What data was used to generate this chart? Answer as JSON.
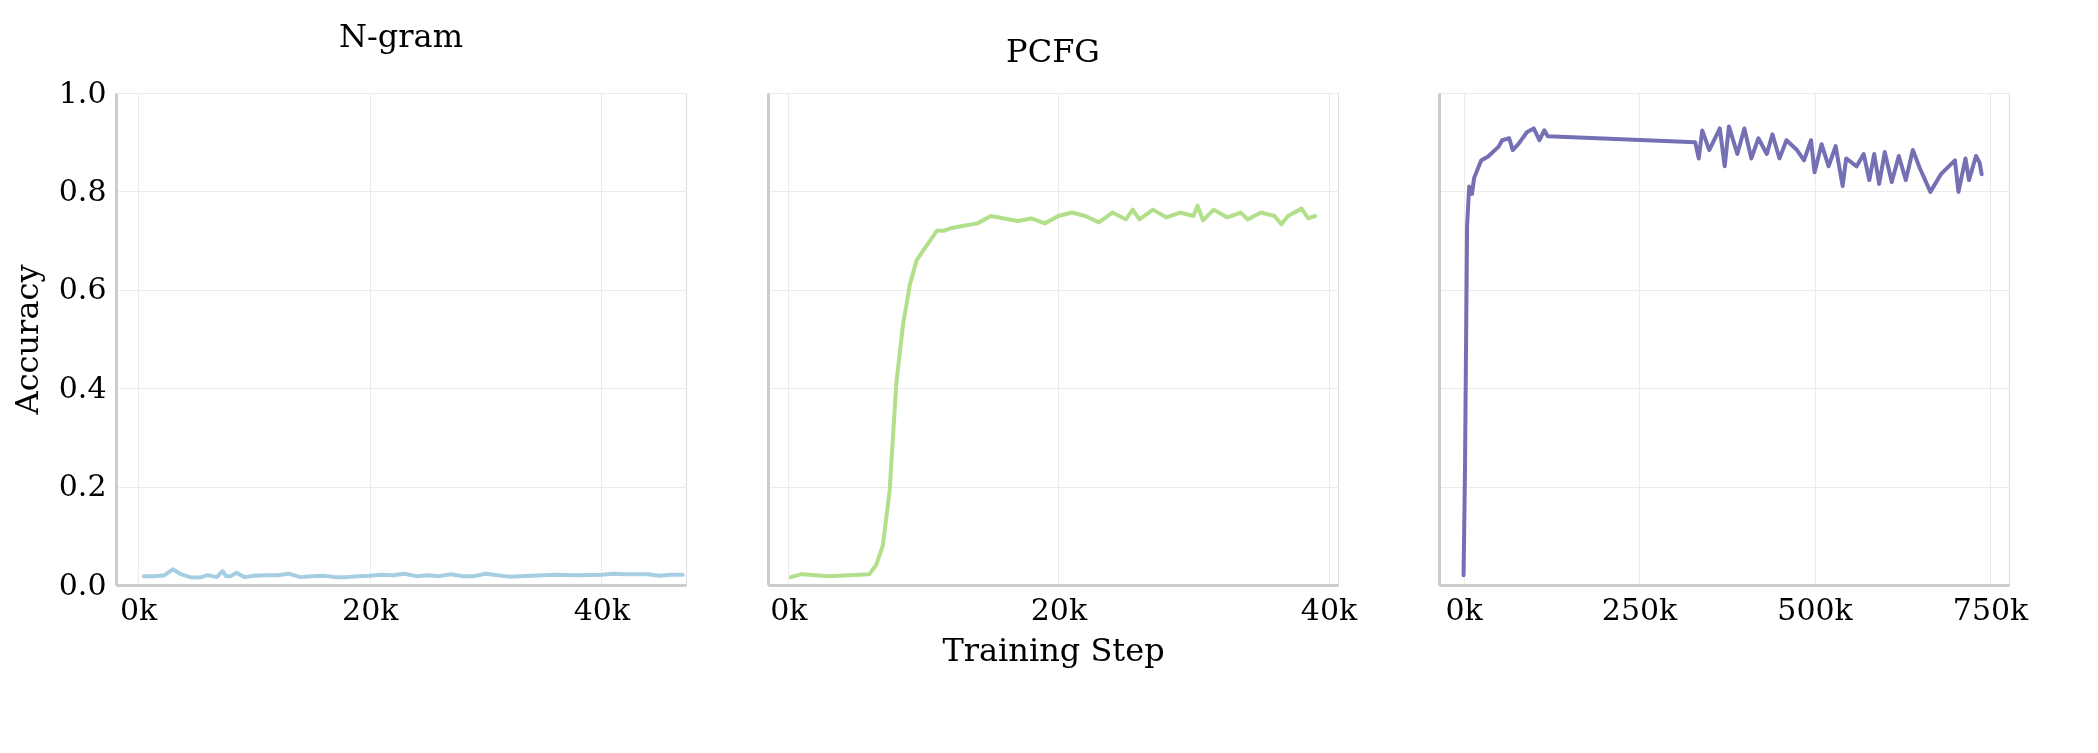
{
  "chart_data": [
    {
      "type": "line",
      "title": "N-gram",
      "ylabel": "Accuracy",
      "grid": true,
      "line_style": "solid",
      "xlim": [
        -1900,
        47300
      ],
      "ylim": [
        0,
        1.0
      ],
      "xticks": [
        {
          "value": 0,
          "label": "0k"
        },
        {
          "value": 20000,
          "label": "20k"
        },
        {
          "value": 40000,
          "label": "40k"
        }
      ],
      "yticks": [
        {
          "value": 0,
          "label": "0.0"
        },
        0.2,
        0.4,
        0.6,
        0.8,
        {
          "value": 1.0,
          "label": "1.0"
        }
      ],
      "series": [
        {
          "color": "#a6cee3",
          "x": [
            500,
            1500,
            2300,
            3000,
            3700,
            4500,
            5300,
            6000,
            6800,
            7300,
            7600,
            8000,
            8500,
            9200,
            10000,
            11000,
            12000,
            13000,
            14000,
            15000,
            16000,
            17000,
            18000,
            19000,
            20000,
            21000,
            22000,
            23000,
            24000,
            25000,
            26000,
            27000,
            28000,
            29000,
            30000,
            32000,
            34000,
            36000,
            38000,
            40000,
            41000,
            42000,
            44000,
            45000,
            46000,
            47000
          ],
          "values": [
            0.018,
            0.018,
            0.02,
            0.032,
            0.022,
            0.016,
            0.015,
            0.02,
            0.016,
            0.028,
            0.018,
            0.018,
            0.025,
            0.016,
            0.019,
            0.02,
            0.02,
            0.023,
            0.016,
            0.018,
            0.019,
            0.016,
            0.016,
            0.018,
            0.019,
            0.021,
            0.02,
            0.023,
            0.018,
            0.02,
            0.018,
            0.022,
            0.018,
            0.018,
            0.023,
            0.017,
            0.019,
            0.021,
            0.02,
            0.021,
            0.023,
            0.022,
            0.022,
            0.019,
            0.021,
            0.021
          ]
        }
      ]
    },
    {
      "type": "line",
      "title": "PCFG",
      "xlabel": "Training Step",
      "grid": true,
      "line_style": "solid",
      "tick_labels": "x",
      "xlim": [
        -1500,
        40700
      ],
      "ylim": [
        0,
        1.0
      ],
      "xticks": [
        {
          "value": 0,
          "label": "0k"
        },
        {
          "value": 20000,
          "label": "20k"
        },
        {
          "value": 40000,
          "label": "40k"
        }
      ],
      "yticks": [
        0,
        0.2,
        0.4,
        0.6,
        0.8,
        1.0
      ],
      "series": [
        {
          "color": "#b2df8a",
          "x": [
            200,
            1000,
            3000,
            6000,
            6500,
            7000,
            7500,
            8000,
            8500,
            9000,
            9500,
            10000,
            10500,
            11000,
            11500,
            12000,
            13000,
            14000,
            15000,
            16000,
            17000,
            18000,
            19000,
            20000,
            21000,
            22000,
            23000,
            24000,
            25000,
            25500,
            26000,
            27000,
            28000,
            29000,
            30000,
            30300,
            30700,
            31500,
            32500,
            33500,
            34000,
            35000,
            36000,
            36500,
            37000,
            38000,
            38500,
            39000
          ],
          "values": [
            0.016,
            0.022,
            0.018,
            0.022,
            0.04,
            0.08,
            0.19,
            0.41,
            0.53,
            0.61,
            0.66,
            0.68,
            0.7,
            0.72,
            0.72,
            0.725,
            0.73,
            0.735,
            0.75,
            0.745,
            0.74,
            0.745,
            0.735,
            0.75,
            0.757,
            0.75,
            0.737,
            0.757,
            0.743,
            0.763,
            0.743,
            0.763,
            0.747,
            0.757,
            0.75,
            0.771,
            0.741,
            0.763,
            0.747,
            0.757,
            0.743,
            0.757,
            0.75,
            0.733,
            0.75,
            0.765,
            0.745,
            0.75
          ]
        }
      ]
    },
    {
      "type": "line",
      "grid": true,
      "line_style": "solid",
      "tick_labels": "x",
      "xlim": [
        -35000,
        777000
      ],
      "ylim": [
        0,
        1.0
      ],
      "xticks": [
        {
          "value": 0,
          "label": "0k"
        },
        {
          "value": 250000,
          "label": "250k"
        },
        {
          "value": 500000,
          "label": "500k"
        },
        {
          "value": 750000,
          "label": "750k"
        }
      ],
      "yticks": [
        0,
        0.2,
        0.4,
        0.6,
        0.8,
        1.0
      ],
      "series": [
        {
          "color": "#7570b3",
          "x": [
            0,
            2000,
            5000,
            8000,
            12000,
            15000,
            25000,
            35000,
            50000,
            55000,
            65000,
            70000,
            78000,
            90000,
            100000,
            108000,
            115000,
            120000,
            330000,
            335000,
            340000,
            350000,
            365000,
            372000,
            378000,
            390000,
            400000,
            410000,
            420000,
            432000,
            440000,
            450000,
            460000,
            475000,
            485000,
            495000,
            500000,
            510000,
            520000,
            530000,
            540000,
            545000,
            560000,
            570000,
            578000,
            585000,
            592000,
            600000,
            610000,
            620000,
            630000,
            640000,
            650000,
            665000,
            680000,
            700000,
            705000,
            715000,
            720000,
            730000,
            735000,
            738000
          ],
          "values": [
            0.02,
            0.23,
            0.73,
            0.81,
            0.795,
            0.827,
            0.863,
            0.871,
            0.891,
            0.904,
            0.908,
            0.884,
            0.896,
            0.92,
            0.928,
            0.904,
            0.924,
            0.912,
            0.9,
            0.867,
            0.924,
            0.884,
            0.928,
            0.851,
            0.932,
            0.876,
            0.928,
            0.867,
            0.908,
            0.876,
            0.916,
            0.867,
            0.904,
            0.884,
            0.863,
            0.904,
            0.839,
            0.896,
            0.851,
            0.892,
            0.811,
            0.867,
            0.851,
            0.876,
            0.823,
            0.876,
            0.815,
            0.88,
            0.819,
            0.872,
            0.823,
            0.884,
            0.847,
            0.799,
            0.835,
            0.863,
            0.799,
            0.867,
            0.823,
            0.872,
            0.859,
            0.835
          ]
        }
      ]
    }
  ]
}
